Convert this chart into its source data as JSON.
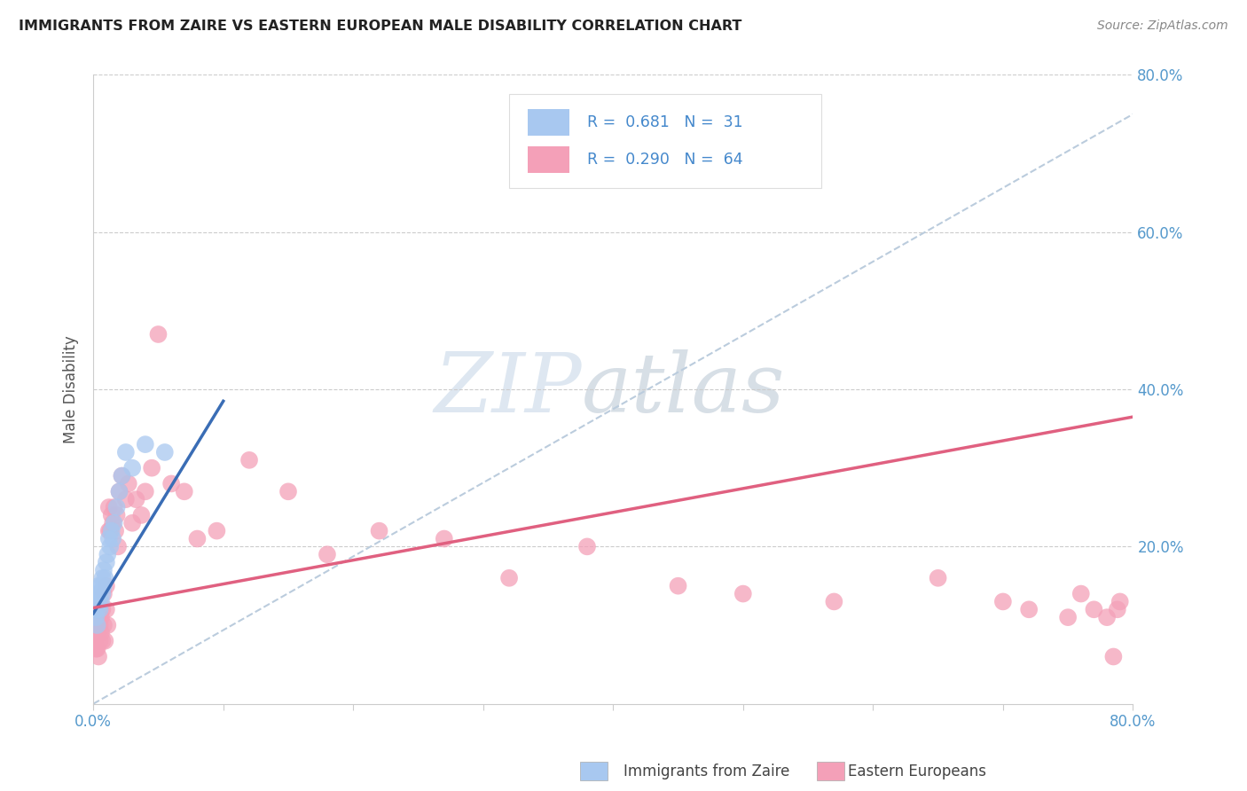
{
  "title": "IMMIGRANTS FROM ZAIRE VS EASTERN EUROPEAN MALE DISABILITY CORRELATION CHART",
  "source": "Source: ZipAtlas.com",
  "ylabel": "Male Disability",
  "right_yticks": [
    "80.0%",
    "60.0%",
    "40.0%",
    "20.0%"
  ],
  "right_ytick_vals": [
    0.8,
    0.6,
    0.4,
    0.2
  ],
  "xlim": [
    0.0,
    0.8
  ],
  "ylim": [
    0.0,
    0.8
  ],
  "watermark_zip": "ZIP",
  "watermark_atlas": "atlas",
  "blue_color": "#A8C8F0",
  "pink_color": "#F4A0B8",
  "blue_line_color": "#3A6DB5",
  "pink_line_color": "#E06080",
  "dash_color": "#BBCCDD",
  "zaire_x": [
    0.001,
    0.002,
    0.002,
    0.003,
    0.003,
    0.003,
    0.004,
    0.004,
    0.005,
    0.005,
    0.006,
    0.006,
    0.007,
    0.007,
    0.008,
    0.008,
    0.009,
    0.01,
    0.011,
    0.012,
    0.013,
    0.014,
    0.015,
    0.016,
    0.018,
    0.02,
    0.022,
    0.025,
    0.03,
    0.04,
    0.055
  ],
  "zaire_y": [
    0.12,
    0.11,
    0.13,
    0.1,
    0.12,
    0.14,
    0.13,
    0.15,
    0.12,
    0.14,
    0.15,
    0.13,
    0.16,
    0.14,
    0.17,
    0.15,
    0.16,
    0.18,
    0.19,
    0.21,
    0.2,
    0.22,
    0.21,
    0.23,
    0.25,
    0.27,
    0.29,
    0.32,
    0.3,
    0.33,
    0.32
  ],
  "eastern_x": [
    0.001,
    0.002,
    0.002,
    0.003,
    0.003,
    0.003,
    0.004,
    0.004,
    0.005,
    0.005,
    0.005,
    0.006,
    0.006,
    0.007,
    0.007,
    0.008,
    0.008,
    0.009,
    0.01,
    0.01,
    0.011,
    0.012,
    0.012,
    0.013,
    0.014,
    0.015,
    0.016,
    0.017,
    0.018,
    0.019,
    0.02,
    0.022,
    0.025,
    0.027,
    0.03,
    0.033,
    0.037,
    0.04,
    0.045,
    0.05,
    0.06,
    0.07,
    0.08,
    0.095,
    0.12,
    0.15,
    0.18,
    0.22,
    0.27,
    0.32,
    0.38,
    0.45,
    0.5,
    0.57,
    0.65,
    0.7,
    0.72,
    0.75,
    0.76,
    0.77,
    0.78,
    0.785,
    0.788,
    0.79
  ],
  "eastern_y": [
    0.08,
    0.07,
    0.1,
    0.07,
    0.09,
    0.11,
    0.06,
    0.1,
    0.08,
    0.1,
    0.12,
    0.09,
    0.11,
    0.08,
    0.12,
    0.1,
    0.14,
    0.08,
    0.12,
    0.15,
    0.1,
    0.22,
    0.25,
    0.22,
    0.24,
    0.23,
    0.25,
    0.22,
    0.24,
    0.2,
    0.27,
    0.29,
    0.26,
    0.28,
    0.23,
    0.26,
    0.24,
    0.27,
    0.3,
    0.47,
    0.28,
    0.27,
    0.21,
    0.22,
    0.31,
    0.27,
    0.19,
    0.22,
    0.21,
    0.16,
    0.2,
    0.15,
    0.14,
    0.13,
    0.16,
    0.13,
    0.12,
    0.11,
    0.14,
    0.12,
    0.11,
    0.06,
    0.12,
    0.13
  ],
  "blue_line_x0": 0.0,
  "blue_line_y0": 0.115,
  "blue_line_x1": 0.1,
  "blue_line_y1": 0.385,
  "pink_line_x0": 0.0,
  "pink_line_y0": 0.122,
  "pink_line_x1": 0.8,
  "pink_line_y1": 0.365,
  "dash_line_x0": 0.0,
  "dash_line_y0": 0.0,
  "dash_line_x1": 0.8,
  "dash_line_y1": 0.75
}
